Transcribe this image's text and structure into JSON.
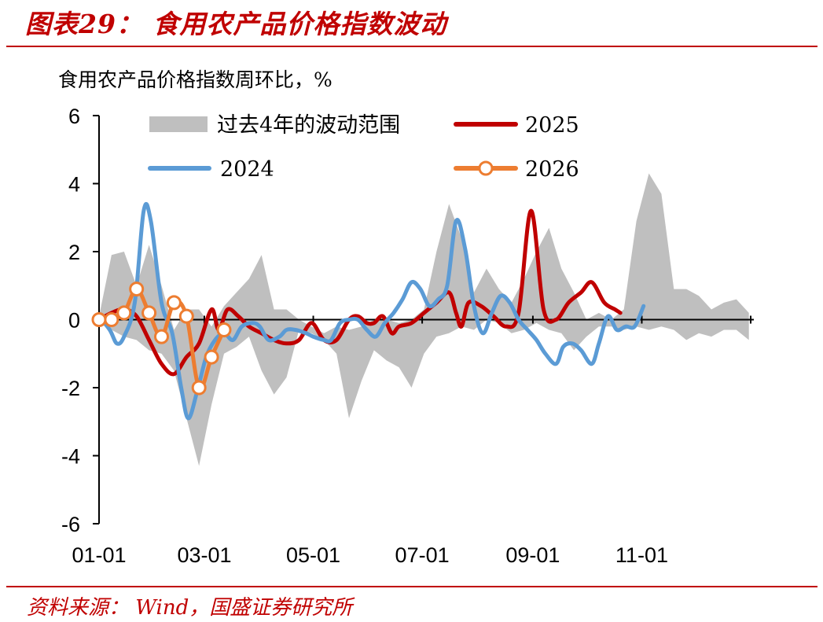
{
  "figure": {
    "title": "图表29：  食用农产品价格指数波动",
    "source": "资料来源：  Wind，国盛证券研究所"
  },
  "colors": {
    "brand_red": "#c00000",
    "band": "#bfbfbf",
    "series_2024": "#5b9bd5",
    "series_2025": "#c00000",
    "series_2026": "#ed7d31"
  },
  "chart_data": {
    "type": "line",
    "title": "",
    "ylabel": "食用农产品价格指数周环比，%",
    "xlabel": "",
    "ylim": [
      -6,
      6
    ],
    "xlim_days": [
      0,
      365
    ],
    "yticks": [
      "6",
      "4",
      "2",
      "0",
      "-2",
      "-4",
      "-6"
    ],
    "xticks": [
      "01-01",
      "03-01",
      "05-01",
      "07-01",
      "09-01",
      "11-01"
    ],
    "legend_position": "top",
    "grid": false,
    "band": {
      "name": "过去4年的波动范围",
      "upper": [
        [
          0,
          0.1
        ],
        [
          7,
          1.9
        ],
        [
          14,
          2.0
        ],
        [
          21,
          1.0
        ],
        [
          28,
          2.2
        ],
        [
          35,
          1.0
        ],
        [
          42,
          -0.3
        ],
        [
          49,
          0.3
        ],
        [
          56,
          0.3
        ],
        [
          63,
          -0.2
        ],
        [
          70,
          0.4
        ],
        [
          77,
          0.8
        ],
        [
          84,
          1.2
        ],
        [
          91,
          1.9
        ],
        [
          98,
          0.3
        ],
        [
          105,
          0.3
        ],
        [
          112,
          0.0
        ],
        [
          119,
          -0.2
        ],
        [
          126,
          -0.4
        ],
        [
          133,
          -0.2
        ],
        [
          140,
          -0.3
        ],
        [
          147,
          -0.2
        ],
        [
          154,
          0.0
        ],
        [
          161,
          0.0
        ],
        [
          168,
          -0.1
        ],
        [
          175,
          0.0
        ],
        [
          182,
          0.3
        ],
        [
          189,
          2.0
        ],
        [
          196,
          3.4
        ],
        [
          203,
          2.4
        ],
        [
          210,
          0.8
        ],
        [
          217,
          1.5
        ],
        [
          224,
          0.9
        ],
        [
          231,
          0.5
        ],
        [
          238,
          1.2
        ],
        [
          245,
          2.0
        ],
        [
          252,
          2.7
        ],
        [
          259,
          1.5
        ],
        [
          266,
          0.8
        ],
        [
          273,
          0.0
        ],
        [
          280,
          0.2
        ],
        [
          287,
          0.0
        ],
        [
          294,
          0.3
        ],
        [
          301,
          2.9
        ],
        [
          308,
          4.3
        ],
        [
          315,
          3.7
        ],
        [
          322,
          0.9
        ],
        [
          329,
          0.9
        ],
        [
          336,
          0.7
        ],
        [
          343,
          0.3
        ],
        [
          350,
          0.5
        ],
        [
          357,
          0.6
        ],
        [
          364,
          0.2
        ]
      ],
      "lower": [
        [
          0,
          -0.1
        ],
        [
          7,
          -0.3
        ],
        [
          14,
          -0.5
        ],
        [
          21,
          -0.6
        ],
        [
          28,
          -0.9
        ],
        [
          35,
          -1.0
        ],
        [
          42,
          -1.5
        ],
        [
          49,
          -2.9
        ],
        [
          56,
          -4.3
        ],
        [
          63,
          -2.5
        ],
        [
          70,
          -1.0
        ],
        [
          77,
          -0.8
        ],
        [
          84,
          -0.5
        ],
        [
          91,
          -1.5
        ],
        [
          98,
          -2.2
        ],
        [
          105,
          -1.7
        ],
        [
          112,
          -0.3
        ],
        [
          119,
          -0.4
        ],
        [
          126,
          -0.6
        ],
        [
          133,
          -1.0
        ],
        [
          140,
          -2.9
        ],
        [
          147,
          -1.8
        ],
        [
          154,
          -0.9
        ],
        [
          161,
          -1.2
        ],
        [
          168,
          -1.4
        ],
        [
          175,
          -2.0
        ],
        [
          182,
          -1.0
        ],
        [
          189,
          -0.5
        ],
        [
          196,
          -0.4
        ],
        [
          203,
          -0.2
        ],
        [
          210,
          -0.3
        ],
        [
          217,
          0.0
        ],
        [
          224,
          -0.1
        ],
        [
          231,
          -0.4
        ],
        [
          238,
          -0.3
        ],
        [
          245,
          -0.1
        ],
        [
          252,
          -0.3
        ],
        [
          259,
          -0.4
        ],
        [
          266,
          -0.9
        ],
        [
          273,
          -0.5
        ],
        [
          280,
          -0.2
        ],
        [
          287,
          -0.2
        ],
        [
          294,
          -0.3
        ],
        [
          301,
          -0.2
        ],
        [
          308,
          -0.3
        ],
        [
          315,
          -0.2
        ],
        [
          322,
          -0.3
        ],
        [
          329,
          -0.6
        ],
        [
          336,
          -0.4
        ],
        [
          343,
          -0.5
        ],
        [
          350,
          -0.3
        ],
        [
          357,
          -0.3
        ],
        [
          364,
          -0.6
        ]
      ]
    },
    "series": [
      {
        "name": "2024",
        "color": "#5b9bd5",
        "markers": false,
        "points": [
          [
            0,
            0.1
          ],
          [
            6,
            -0.3
          ],
          [
            10,
            -0.7
          ],
          [
            14,
            -0.5
          ],
          [
            20,
            0.5
          ],
          [
            25,
            3.2
          ],
          [
            29,
            2.9
          ],
          [
            35,
            0.5
          ],
          [
            41,
            -0.4
          ],
          [
            46,
            -2.0
          ],
          [
            50,
            -2.9
          ],
          [
            55,
            -2.1
          ],
          [
            60,
            -1.1
          ],
          [
            65,
            -0.6
          ],
          [
            70,
            -0.4
          ],
          [
            75,
            -0.6
          ],
          [
            80,
            -0.2
          ],
          [
            86,
            -0.1
          ],
          [
            90,
            -0.2
          ],
          [
            95,
            -0.6
          ],
          [
            101,
            -0.5
          ],
          [
            105,
            -0.3
          ],
          [
            110,
            -0.3
          ],
          [
            116,
            -0.4
          ],
          [
            120,
            -0.5
          ],
          [
            126,
            -0.6
          ],
          [
            130,
            -0.6
          ],
          [
            135,
            -0.1
          ],
          [
            140,
            0.0
          ],
          [
            145,
            0.0
          ],
          [
            150,
            -0.3
          ],
          [
            155,
            -0.5
          ],
          [
            160,
            -0.1
          ],
          [
            165,
            0.2
          ],
          [
            170,
            0.6
          ],
          [
            175,
            1.1
          ],
          [
            180,
            0.9
          ],
          [
            185,
            0.4
          ],
          [
            190,
            0.6
          ],
          [
            195,
            1.0
          ],
          [
            200,
            2.9
          ],
          [
            205,
            2.1
          ],
          [
            210,
            0.4
          ],
          [
            215,
            -0.4
          ],
          [
            220,
            0.2
          ],
          [
            225,
            0.7
          ],
          [
            230,
            0.5
          ],
          [
            235,
            0.0
          ],
          [
            240,
            -0.3
          ],
          [
            245,
            -0.6
          ],
          [
            250,
            -1.0
          ],
          [
            256,
            -1.3
          ],
          [
            260,
            -0.8
          ],
          [
            265,
            -0.7
          ],
          [
            270,
            -0.9
          ],
          [
            276,
            -1.3
          ],
          [
            280,
            -0.7
          ],
          [
            285,
            0.1
          ],
          [
            290,
            -0.3
          ],
          [
            295,
            -0.2
          ],
          [
            300,
            -0.2
          ],
          [
            305,
            0.4
          ]
        ]
      },
      {
        "name": "2025",
        "color": "#c00000",
        "markers": false,
        "points": [
          [
            0,
            0.0
          ],
          [
            7,
            0.2
          ],
          [
            14,
            0.3
          ],
          [
            21,
            0.1
          ],
          [
            28,
            -0.6
          ],
          [
            35,
            -1.3
          ],
          [
            42,
            -1.6
          ],
          [
            49,
            -1.1
          ],
          [
            56,
            -0.7
          ],
          [
            63,
            0.3
          ],
          [
            67,
            -0.3
          ],
          [
            72,
            0.3
          ],
          [
            78,
            0.1
          ],
          [
            84,
            -0.2
          ],
          [
            91,
            -0.4
          ],
          [
            98,
            -0.6
          ],
          [
            105,
            -0.7
          ],
          [
            112,
            -0.6
          ],
          [
            119,
            -0.1
          ],
          [
            126,
            -0.6
          ],
          [
            133,
            -0.6
          ],
          [
            140,
            0.0
          ],
          [
            145,
            0.1
          ],
          [
            150,
            -0.1
          ],
          [
            154,
            -0.1
          ],
          [
            159,
            0.1
          ],
          [
            164,
            -0.4
          ],
          [
            168,
            -0.2
          ],
          [
            175,
            -0.1
          ],
          [
            182,
            0.2
          ],
          [
            189,
            0.5
          ],
          [
            196,
            0.8
          ],
          [
            200,
            0.2
          ],
          [
            203,
            -0.2
          ],
          [
            207,
            0.5
          ],
          [
            214,
            0.4
          ],
          [
            221,
            0.1
          ],
          [
            228,
            -0.2
          ],
          [
            235,
            0.2
          ],
          [
            242,
            3.2
          ],
          [
            249,
            0.3
          ],
          [
            256,
            0.0
          ],
          [
            263,
            0.5
          ],
          [
            270,
            0.8
          ],
          [
            276,
            1.1
          ],
          [
            283,
            0.5
          ],
          [
            289,
            0.3
          ],
          [
            292,
            0.2
          ]
        ]
      },
      {
        "name": "2026",
        "color": "#ed7d31",
        "markers": true,
        "points": [
          [
            0,
            0.0
          ],
          [
            7,
            0.0
          ],
          [
            14,
            0.2
          ],
          [
            21,
            0.9
          ],
          [
            28,
            0.2
          ],
          [
            35,
            -0.5
          ],
          [
            42,
            0.5
          ],
          [
            49,
            0.1
          ],
          [
            56,
            -2.0
          ],
          [
            63,
            -1.1
          ],
          [
            70,
            -0.3
          ]
        ]
      }
    ]
  }
}
